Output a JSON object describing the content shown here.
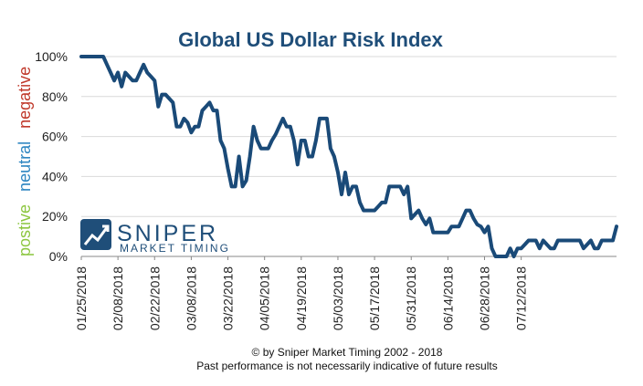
{
  "chart_data": {
    "type": "line",
    "title": "Global US Dollar Risk Index",
    "xlabel": "",
    "ylabel": "",
    "ylim": [
      0,
      100
    ],
    "y_ticks": [
      "0%",
      "20%",
      "40%",
      "60%",
      "80%",
      "100%"
    ],
    "x_tick_labels": [
      "01/25/2018",
      "02/08/2018",
      "02/22/2018",
      "03/08/2018",
      "03/22/2018",
      "04/05/2018",
      "04/19/2018",
      "05/03/2018",
      "05/17/2018",
      "05/31/2018",
      "06/14/2018",
      "06/28/2018",
      "07/12/2018"
    ],
    "grid": true,
    "series": [
      {
        "values": [
          100,
          100,
          100,
          100,
          100,
          100,
          100,
          96,
          92,
          88,
          92,
          85,
          92,
          90,
          88,
          88,
          92,
          96,
          92,
          90,
          88,
          75,
          81,
          81,
          79,
          77,
          65,
          65,
          69,
          67,
          62,
          65,
          65,
          73,
          75,
          77,
          73,
          73,
          58,
          54,
          44,
          35,
          35,
          50,
          35,
          38,
          50,
          65,
          58,
          54,
          54,
          54,
          58,
          61,
          65,
          69,
          65,
          65,
          58,
          46,
          58,
          58,
          50,
          50,
          58,
          69,
          69,
          69,
          54,
          50,
          42,
          31,
          42,
          31,
          35,
          35,
          27,
          23,
          23,
          23,
          23,
          25,
          27,
          27,
          35,
          35,
          35,
          35,
          31,
          35,
          19,
          21,
          23,
          19,
          16,
          19,
          12,
          12,
          12,
          12,
          12,
          15,
          15,
          15,
          19,
          23,
          23,
          19,
          16,
          15,
          12,
          15,
          4,
          0,
          0,
          0,
          0,
          4,
          0,
          4,
          4,
          6,
          8,
          8,
          8,
          4,
          8,
          6,
          4,
          4,
          8,
          8,
          8,
          8,
          8,
          8,
          8,
          4,
          6,
          8,
          4,
          4,
          8,
          8,
          8,
          8,
          15
        ],
        "color": "#1a4a78"
      }
    ],
    "side_labels": [
      {
        "text": "postive",
        "color": "#8cc63f"
      },
      {
        "text": "neutral",
        "color": "#2e86c1"
      },
      {
        "text": "negative",
        "color": "#c0392b"
      }
    ]
  },
  "brand": {
    "name": "SNIPER",
    "tagline": "MARKET TIMING"
  },
  "footer": {
    "line1": "© by Sniper Market Timing 2002 - 2018",
    "line2": "Past performance is not necessarily indicative of future results"
  }
}
